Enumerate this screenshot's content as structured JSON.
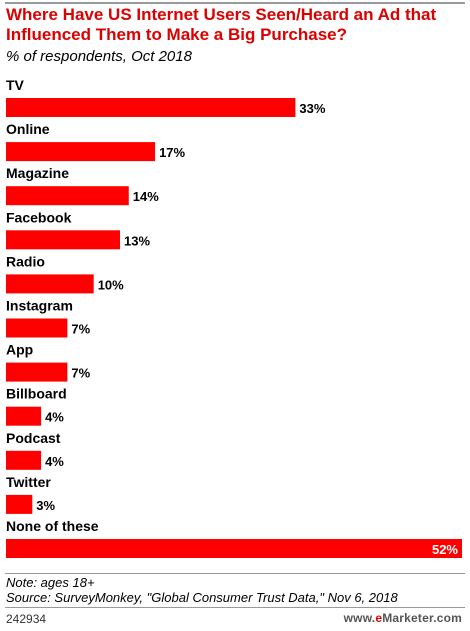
{
  "chart_data": {
    "type": "bar",
    "orientation": "horizontal",
    "title": "Where Have US Internet Users Seen/Heard an Ad that Influenced Them to Make a Big Purchase?",
    "subtitle": "% of respondents, Oct 2018",
    "categories": [
      "TV",
      "Online",
      "Magazine",
      "Facebook",
      "Radio",
      "Instagram",
      "App",
      "Billboard",
      "Podcast",
      "Twitter",
      "None of these"
    ],
    "values": [
      33,
      17,
      14,
      13,
      10,
      7,
      7,
      4,
      4,
      3,
      52
    ],
    "value_labels": [
      "33%",
      "17%",
      "14%",
      "13%",
      "10%",
      "7%",
      "7%",
      "4%",
      "4%",
      "3%",
      "52%"
    ],
    "xlim": [
      0,
      52
    ],
    "grid": false,
    "bar_color": "#ff0000"
  },
  "footer": {
    "note": "Note: ages 18+",
    "source": "Source: SurveyMonkey, \"Global Consumer Trust Data,\" Nov 6, 2018",
    "chart_id": "242934",
    "brand_e": "e",
    "brand_rest": "Marketer",
    "brand_domain": ".com"
  }
}
